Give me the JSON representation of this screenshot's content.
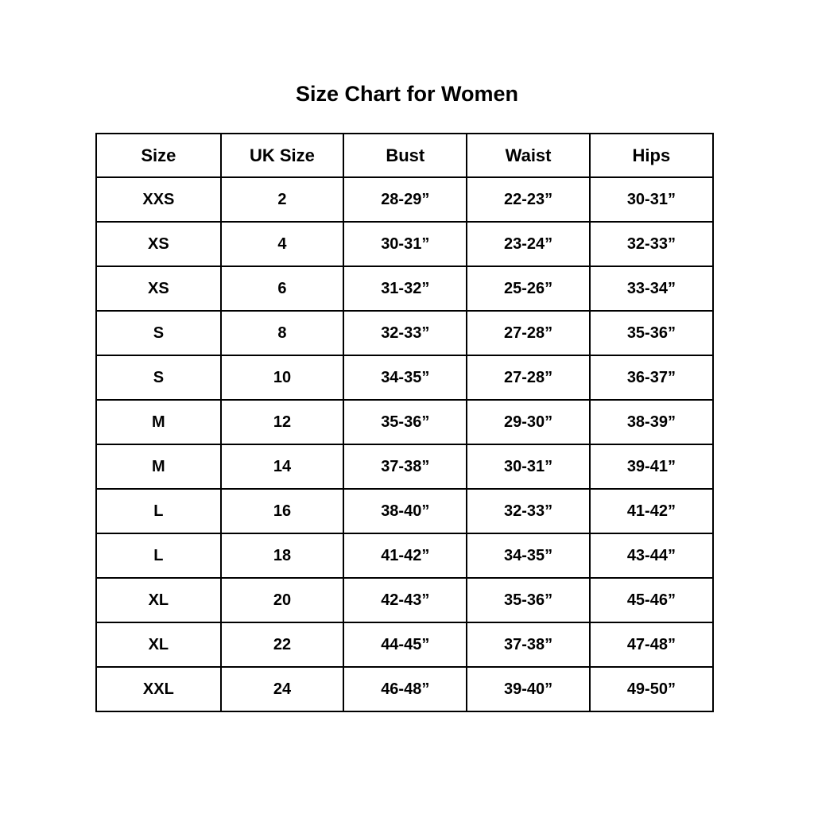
{
  "title": "Size Chart for Women",
  "colors": {
    "background": "#ffffff",
    "text": "#000000",
    "border": "#000000"
  },
  "chart_data": {
    "type": "table",
    "title": "Size Chart for Women",
    "columns": [
      "Size",
      "UK Size",
      "Bust",
      "Waist",
      "Hips"
    ],
    "rows": [
      [
        "XXS",
        "2",
        "28-29”",
        "22-23”",
        "30-31”"
      ],
      [
        "XS",
        "4",
        "30-31”",
        "23-24”",
        "32-33”"
      ],
      [
        "XS",
        "6",
        "31-32”",
        "25-26”",
        "33-34”"
      ],
      [
        "S",
        "8",
        "32-33”",
        "27-28”",
        "35-36”"
      ],
      [
        "S",
        "10",
        "34-35”",
        "27-28”",
        "36-37”"
      ],
      [
        "M",
        "12",
        "35-36”",
        "29-30”",
        "38-39”"
      ],
      [
        "M",
        "14",
        "37-38”",
        "30-31”",
        "39-41”"
      ],
      [
        "L",
        "16",
        "38-40”",
        "32-33”",
        "41-42”"
      ],
      [
        "L",
        "18",
        "41-42”",
        "34-35”",
        "43-44”"
      ],
      [
        "XL",
        "20",
        "42-43”",
        "35-36”",
        "45-46”"
      ],
      [
        "XL",
        "22",
        "44-45”",
        "37-38”",
        "47-48”"
      ],
      [
        "XXL",
        "24",
        "46-48”",
        "39-40”",
        "49-50”"
      ]
    ],
    "layout": {
      "grid": true,
      "header_row": true,
      "columns_equal_width": true
    }
  }
}
